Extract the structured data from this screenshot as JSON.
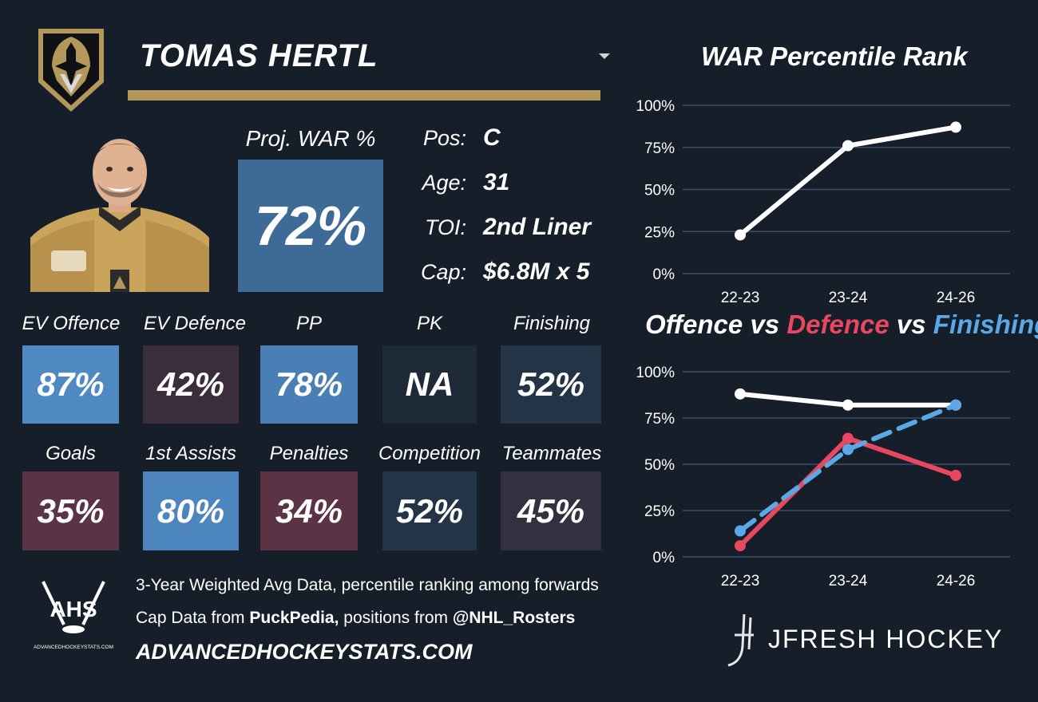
{
  "player": {
    "name": "TOMAS HERTL",
    "proj_war_label": "Proj. WAR %",
    "proj_war_value": "72%",
    "info": [
      {
        "label": "Pos:",
        "value": "C"
      },
      {
        "label": "Age:",
        "value": "31"
      },
      {
        "label": "TOI:",
        "value": "2nd Liner"
      },
      {
        "label": "Cap:",
        "value": "$6.8M x 5"
      }
    ]
  },
  "tiles_row1": [
    {
      "label": "EV Offence",
      "value": "87%",
      "color": "#4f89c2"
    },
    {
      "label": "EV Defence",
      "value": "42%",
      "color": "#3c2d3c"
    },
    {
      "label": "PP",
      "value": "78%",
      "color": "#4a7fb5"
    },
    {
      "label": "PK",
      "value": "NA",
      "color": "#1f2a38"
    },
    {
      "label": "Finishing",
      "value": "52%",
      "color": "#243447"
    }
  ],
  "tiles_row2": [
    {
      "label": "Goals",
      "value": "35%",
      "color": "#5a3446"
    },
    {
      "label": "1st Assists",
      "value": "80%",
      "color": "#4d86be"
    },
    {
      "label": "Penalties",
      "value": "34%",
      "color": "#5c3345"
    },
    {
      "label": "Competition",
      "value": "52%",
      "color": "#243447"
    },
    {
      "label": "Teammates",
      "value": "45%",
      "color": "#33303f"
    }
  ],
  "footer": {
    "line1": "3-Year Weighted Avg Data, percentile ranking among forwards",
    "line2_prefix": "Cap Data from ",
    "line2_bold1": "PuckPedia,",
    "line2_mid": " positions from ",
    "line2_bold2": "@NHL_Rosters",
    "site": "ADVANCEDHOCKEYSTATS.COM",
    "ahs_logo_text": "AHS",
    "ahs_logo_small": "ADVANCEDHOCKEYSTATS.COM",
    "jfresh": "JFRESH HOCKEY"
  },
  "colors": {
    "background": "#161e2a",
    "gold": "#b4975a",
    "proj_box": "#3d6a96",
    "offence": "#ffffff",
    "defence": "#e8485f",
    "finishing": "#5aa9e6",
    "grid": "#3c4f68"
  },
  "chart_data": [
    {
      "type": "line",
      "title": "WAR Percentile Rank",
      "categories": [
        "22-23",
        "23-24",
        "24-26"
      ],
      "series": [
        {
          "values": [
            23,
            76,
            87
          ],
          "color": "#ffffff"
        }
      ],
      "ylim": [
        0,
        100
      ],
      "yticks": [
        "0%",
        "25%",
        "50%",
        "75%",
        "100%"
      ],
      "grid": true
    },
    {
      "type": "line",
      "title_parts": [
        {
          "text": "Offence",
          "color": "#ffffff"
        },
        {
          "text": " vs ",
          "color": "#ffffff"
        },
        {
          "text": "Defence",
          "color": "#e8485f"
        },
        {
          "text": " vs ",
          "color": "#ffffff"
        },
        {
          "text": "Finishing",
          "color": "#5aa9e6"
        }
      ],
      "categories": [
        "22-23",
        "23-24",
        "24-26"
      ],
      "series": [
        {
          "name": "Offence",
          "values": [
            88,
            82,
            82
          ],
          "color": "#ffffff",
          "dashed": false
        },
        {
          "name": "Defence",
          "values": [
            6,
            64,
            44
          ],
          "color": "#e8485f",
          "dashed": false
        },
        {
          "name": "Finishing",
          "values": [
            14,
            58,
            82
          ],
          "color": "#5aa9e6",
          "dashed": true
        }
      ],
      "ylim": [
        0,
        100
      ],
      "yticks": [
        "0%",
        "25%",
        "50%",
        "75%",
        "100%"
      ],
      "grid": true
    }
  ]
}
